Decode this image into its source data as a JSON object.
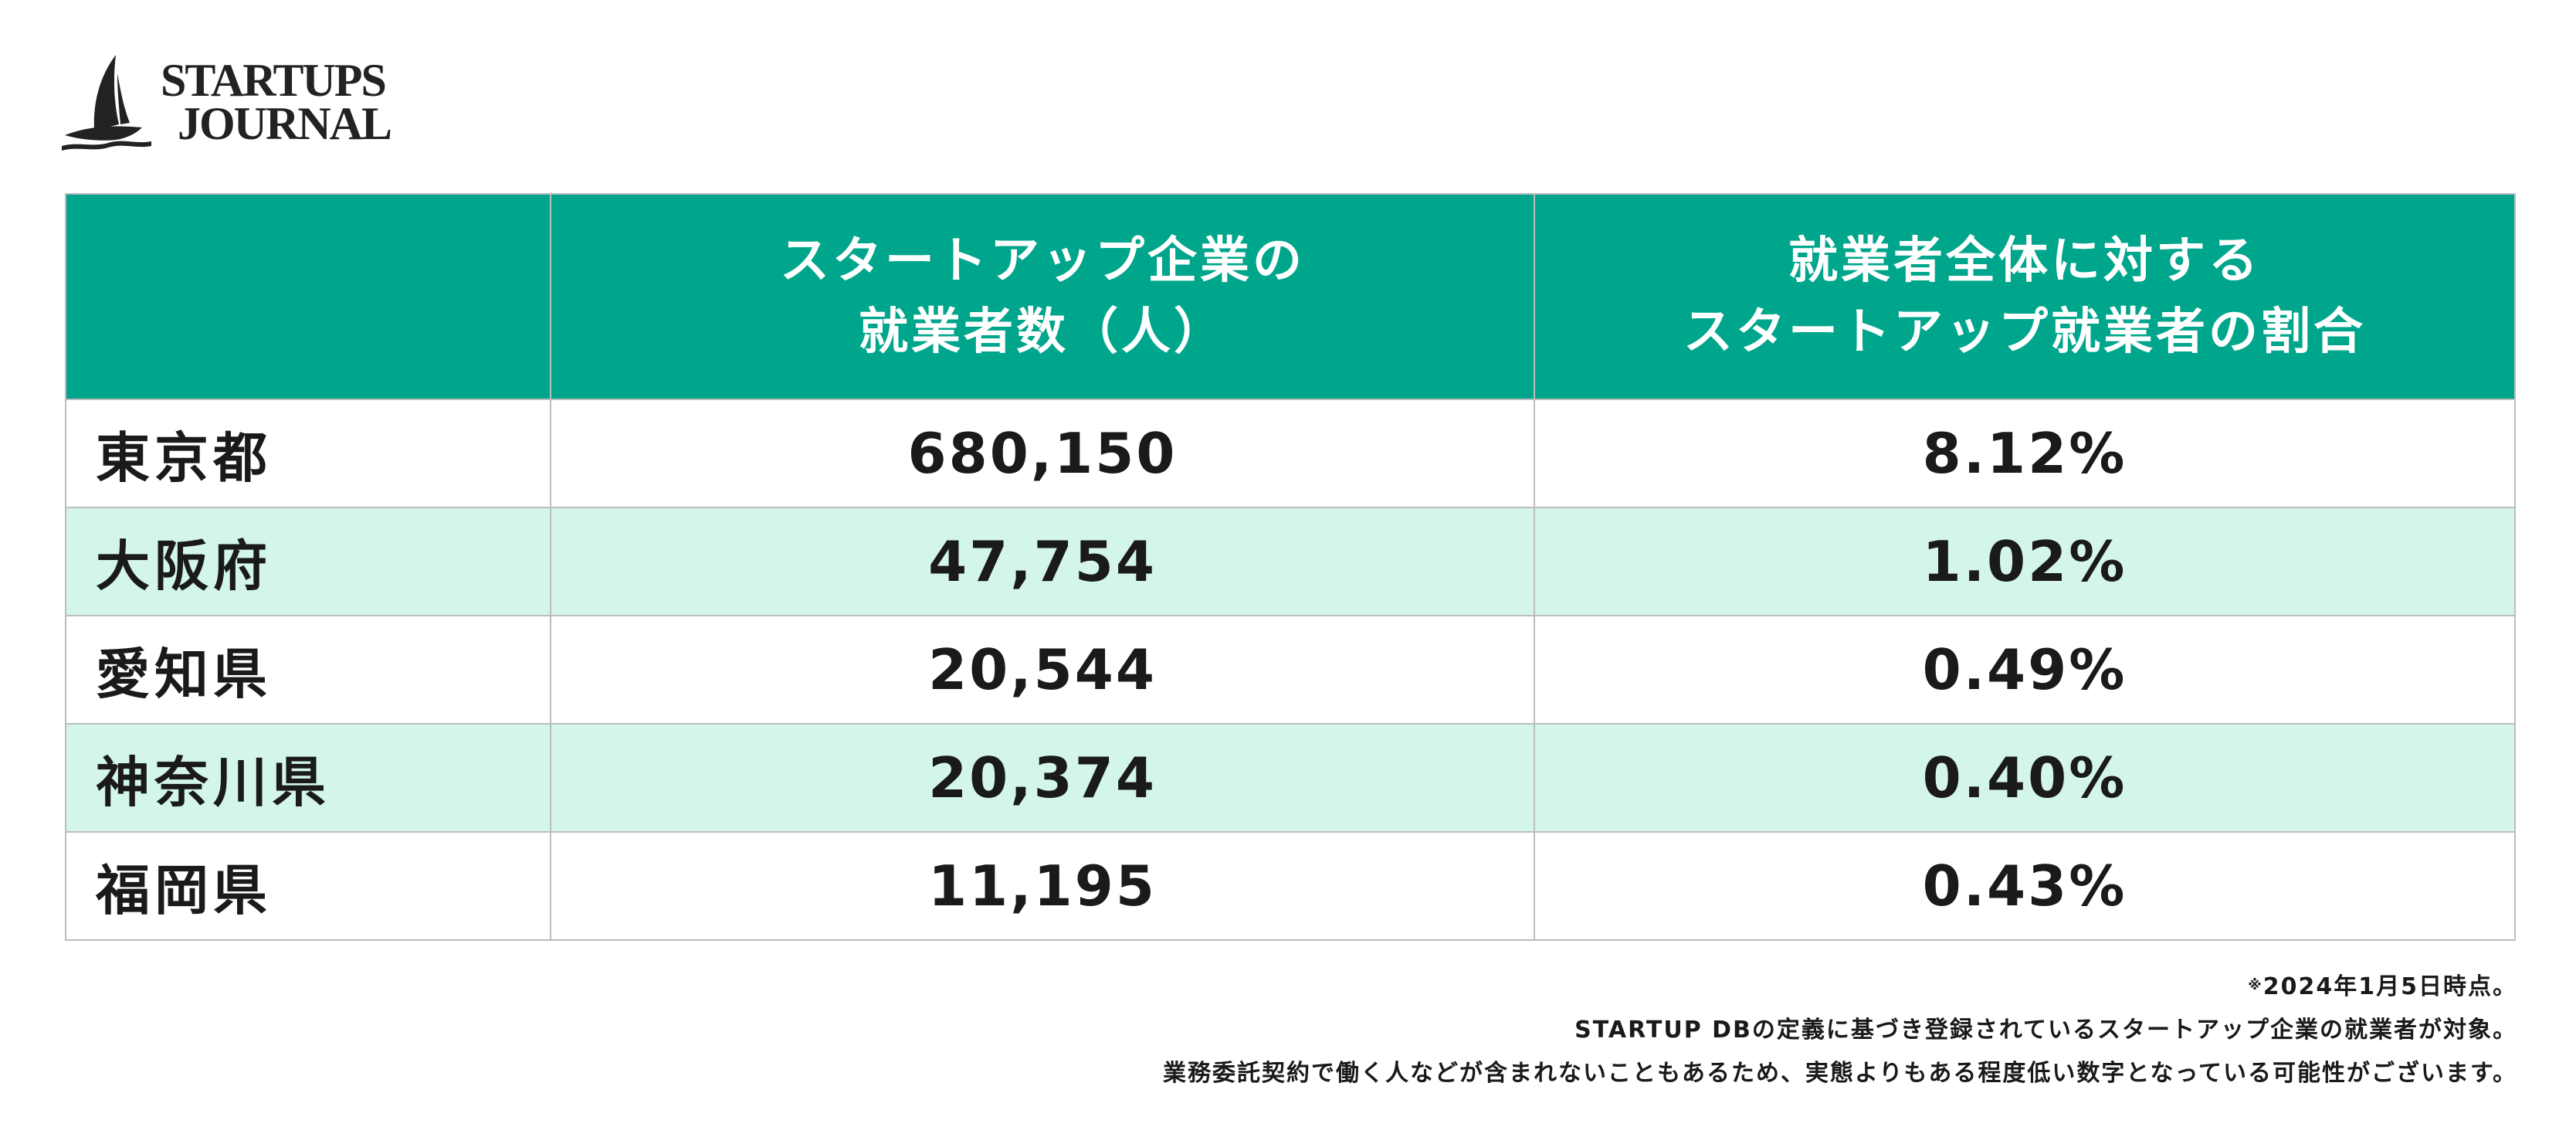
{
  "logo": {
    "line1": "STARTUPS",
    "line2": "JOURNAL"
  },
  "table": {
    "headers": [
      {
        "lines": [
          ""
        ]
      },
      {
        "lines": [
          "スタートアップ企業の",
          "就業者数（人）"
        ]
      },
      {
        "lines": [
          "就業者全体に対する",
          "スタートアップ就業者の割合"
        ]
      }
    ],
    "rows": [
      {
        "prefecture": "東京都",
        "employees": "680,150",
        "share": "8.12%"
      },
      {
        "prefecture": "大阪府",
        "employees": "47,754",
        "share": "1.02%"
      },
      {
        "prefecture": "愛知県",
        "employees": "20,544",
        "share": "0.49%"
      },
      {
        "prefecture": "神奈川県",
        "employees": "20,374",
        "share": "0.40%"
      },
      {
        "prefecture": "福岡県",
        "employees": "11,195",
        "share": "0.43%"
      }
    ]
  },
  "notes": {
    "mark": "※",
    "line1": "2024年1月5日時点。",
    "line2": "STARTUP DBの定義に基づき登録されているスタートアップ企業の就業者が対象。",
    "line3": "業務委託契約で働く人などが含まれないこともあるため、実態よりもある程度低い数字となっている可能性がございます。"
  },
  "colors": {
    "header_bg": "#00a68c",
    "alt_row_bg": "#d3f5ec",
    "border": "#bdbdbd"
  }
}
